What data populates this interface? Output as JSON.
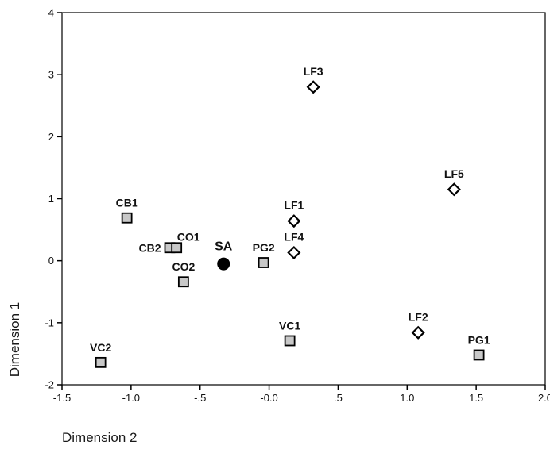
{
  "chart_data": {
    "type": "scatter",
    "title": "",
    "xlabel": "Dimension 2",
    "ylabel": "Dimension 1",
    "xlim": [
      -1.5,
      2.0
    ],
    "ylim": [
      -2,
      4
    ],
    "x_ticks": [
      -1.5,
      -1.0,
      -0.5,
      0.0,
      0.5,
      1.0,
      1.5,
      2.0
    ],
    "x_tick_labels": [
      "-1.5",
      "-1.0",
      "-.5",
      "-0.0",
      ".5",
      "1.0",
      "1.5",
      "2.0"
    ],
    "y_ticks": [
      -2,
      -1,
      0,
      1,
      2,
      3,
      4
    ],
    "y_tick_labels": [
      "-2",
      "-1",
      "0",
      "1",
      "2",
      "3",
      "4"
    ],
    "grid": false,
    "legend": "none",
    "series": [
      {
        "marker": "square",
        "color": "#c8c8c8",
        "points": [
          {
            "label": "CB1",
            "x": -1.03,
            "y": 0.69
          },
          {
            "label": "CB2",
            "x": -0.72,
            "y": 0.21
          },
          {
            "label": "CO1",
            "x": -0.67,
            "y": 0.21
          },
          {
            "label": "CO2",
            "x": -0.62,
            "y": -0.34
          },
          {
            "label": "PG2",
            "x": -0.04,
            "y": -0.03
          },
          {
            "label": "VC1",
            "x": 0.15,
            "y": -1.29
          },
          {
            "label": "VC2",
            "x": -1.22,
            "y": -1.64
          },
          {
            "label": "PG1",
            "x": 1.52,
            "y": -1.52
          }
        ]
      },
      {
        "marker": "diamond",
        "color": "#ffffff",
        "points": [
          {
            "label": "LF3",
            "x": 0.32,
            "y": 2.8
          },
          {
            "label": "LF5",
            "x": 1.34,
            "y": 1.15
          },
          {
            "label": "LF1",
            "x": 0.18,
            "y": 0.64
          },
          {
            "label": "LF4",
            "x": 0.18,
            "y": 0.13
          },
          {
            "label": "LF2",
            "x": 1.08,
            "y": -1.16
          }
        ]
      },
      {
        "marker": "circle",
        "color": "#000000",
        "points": [
          {
            "label": "SA",
            "x": -0.33,
            "y": -0.05
          }
        ]
      }
    ]
  }
}
